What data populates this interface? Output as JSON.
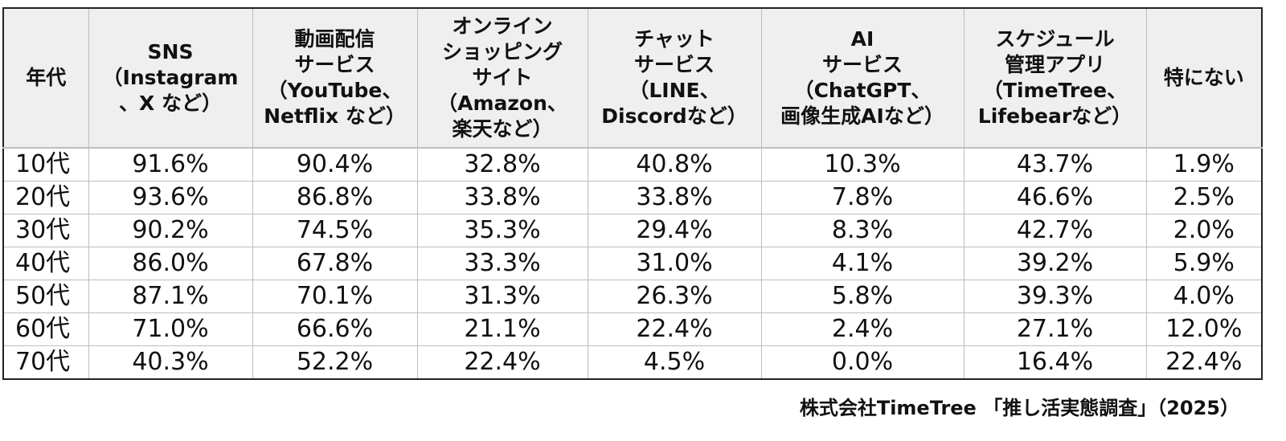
{
  "chart_data": {
    "type": "table",
    "columns": [
      {
        "lines": [
          "年代"
        ]
      },
      {
        "lines": [
          "SNS",
          "（Instagram",
          "、X など）"
        ]
      },
      {
        "lines": [
          "動画配信",
          "サービス",
          "（YouTube、",
          "Netflix など）"
        ]
      },
      {
        "lines": [
          "オンライン",
          "ショッピング",
          "サイト",
          "（Amazon、",
          "楽天など）"
        ]
      },
      {
        "lines": [
          "チャット",
          "サービス",
          "（LINE、",
          "Discordなど）"
        ]
      },
      {
        "lines": [
          "AI",
          "サービス",
          "（ChatGPT、",
          "画像生成AIなど）"
        ]
      },
      {
        "lines": [
          "スケジュール",
          "管理アプリ",
          "（TimeTree、",
          "Lifebearなど）"
        ]
      },
      {
        "lines": [
          "特にない"
        ]
      }
    ],
    "rows": [
      [
        "10代",
        "91.6%",
        "90.4%",
        "32.8%",
        "40.8%",
        "10.3%",
        "43.7%",
        "1.9%"
      ],
      [
        "20代",
        "93.6%",
        "86.8%",
        "33.8%",
        "33.8%",
        "7.8%",
        "46.6%",
        "2.5%"
      ],
      [
        "30代",
        "90.2%",
        "74.5%",
        "35.3%",
        "29.4%",
        "8.3%",
        "42.7%",
        "2.0%"
      ],
      [
        "40代",
        "86.0%",
        "67.8%",
        "33.3%",
        "31.0%",
        "4.1%",
        "39.2%",
        "5.9%"
      ],
      [
        "50代",
        "87.1%",
        "70.1%",
        "31.3%",
        "26.3%",
        "5.8%",
        "39.3%",
        "4.0%"
      ],
      [
        "60代",
        "71.0%",
        "66.6%",
        "21.1%",
        "22.4%",
        "2.4%",
        "27.1%",
        "12.0%"
      ],
      [
        "70代",
        "40.3%",
        "52.2%",
        "22.4%",
        "4.5%",
        "0.0%",
        "16.4%",
        "22.4%"
      ]
    ],
    "source": "株式会社TimeTree 「推し活実態調査」（2025）"
  }
}
